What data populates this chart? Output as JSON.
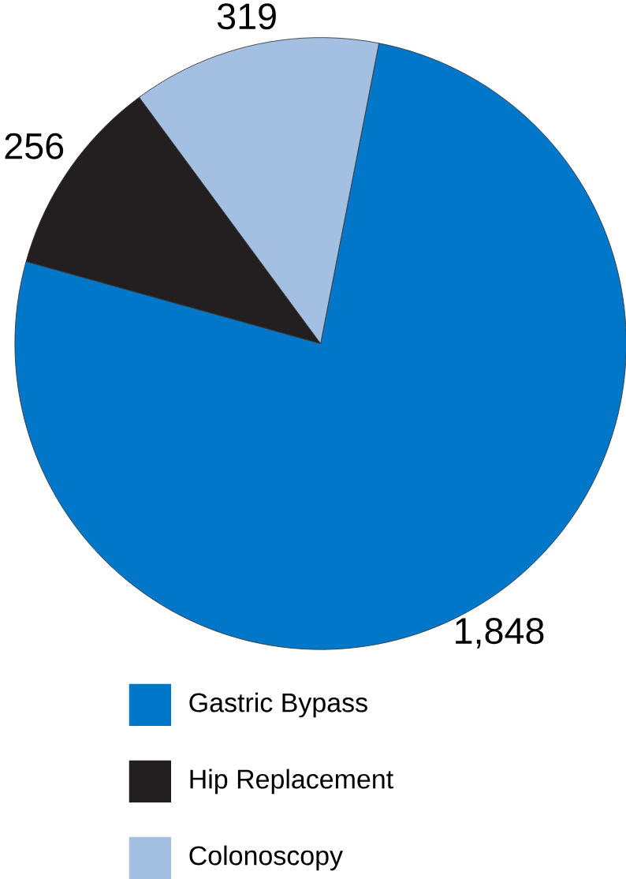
{
  "chart_data": {
    "type": "pie",
    "categories": [
      "Gastric Bypass",
      "Hip Replacement",
      "Colonoscopy"
    ],
    "values": [
      1848,
      256,
      319
    ],
    "colors": [
      "#0077c8",
      "#231f20",
      "#a3c0e2"
    ],
    "data_labels": true,
    "value_labels": [
      "1,848",
      "256",
      "319"
    ],
    "legend": "bottom"
  }
}
